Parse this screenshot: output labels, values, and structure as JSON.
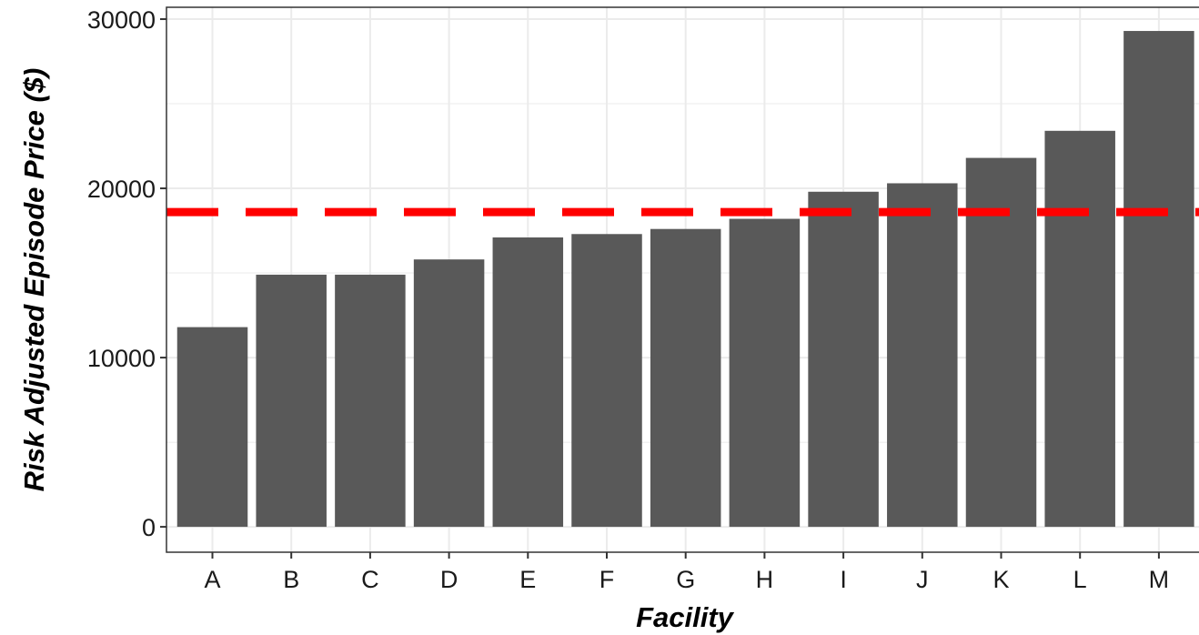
{
  "chart_data": {
    "type": "bar",
    "title": "",
    "xlabel": "Facility",
    "ylabel": "Risk Adjusted Episode Price ($)",
    "categories": [
      "A",
      "B",
      "C",
      "D",
      "E",
      "F",
      "G",
      "H",
      "I",
      "J",
      "K",
      "L",
      "M"
    ],
    "values": [
      11800,
      14900,
      14900,
      15800,
      17100,
      17300,
      17600,
      18200,
      19800,
      20300,
      21800,
      23400,
      29300
    ],
    "ylim": [
      -1500,
      30700
    ],
    "yticks": [
      "0",
      "10000",
      "20000",
      "30000"
    ],
    "reference_line": {
      "value": 18600,
      "style": "dashed",
      "color": "#ff0000"
    },
    "grid": true,
    "legend": "none",
    "colors": {
      "bar": "#595959",
      "grid": "#ebebeb",
      "panel_border": "#333333",
      "reference": "#ff0000"
    }
  }
}
